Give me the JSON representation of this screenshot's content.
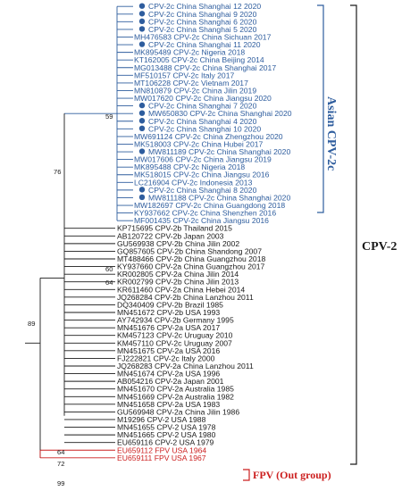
{
  "tree": {
    "asian_clade": [
      {
        "label": "CPV-2c China Shanghai 12 2020",
        "dot": true
      },
      {
        "label": "CPV-2c China Shanghai 9 2020",
        "dot": true
      },
      {
        "label": "CPV-2c China Shanghai 6 2020",
        "dot": true
      },
      {
        "label": "CPV-2c China Shanghai 5 2020",
        "dot": true
      },
      {
        "label": "MH476583 CPV-2c China Sichuan 2017",
        "dot": false
      },
      {
        "label": "CPV-2c China Shanghai 11 2020",
        "dot": true
      },
      {
        "label": "MK895489 CPV-2c Nigeria 2018",
        "dot": false
      },
      {
        "label": "KT162005 CPV-2c China Beijing 2014",
        "dot": false
      },
      {
        "label": "MG013488 CPV-2c China Shanghai 2017",
        "dot": false
      },
      {
        "label": "MF510157 CPV-2c Italy 2017",
        "dot": false
      },
      {
        "label": "MT106228 CPV-2c Vietnam 2017",
        "dot": false
      },
      {
        "label": "MN810879 CPV-2c China Jilin 2019",
        "dot": false
      },
      {
        "label": "MW017620 CPV-2c China Jiangsu 2020",
        "dot": false
      },
      {
        "label": "CPV-2c China Shanghai 7 2020",
        "dot": true
      },
      {
        "label": "MW650830 CPV-2c China Shanghai 2020",
        "dot": true
      },
      {
        "label": "CPV-2c China Shanghai 4 2020",
        "dot": true
      },
      {
        "label": "CPV-2c China Shanghai 10 2020",
        "dot": true
      },
      {
        "label": "MW691124 CPV-2c China Zhengzhou 2020",
        "dot": false
      },
      {
        "label": "MK518003 CPV-2c China Hubei 2017",
        "dot": false
      },
      {
        "label": "MW811189 CPV-2c China Shanghai 2020",
        "dot": true
      },
      {
        "label": "MW017606 CPV-2c China Jiangsu 2019",
        "dot": false
      },
      {
        "label": "MK895488 CPV-2c Nigeria 2018",
        "dot": false
      },
      {
        "label": "MK518015 CPV-2c China Jiangsu 2016",
        "dot": false
      },
      {
        "label": "LC216904 CPV-2c Indonesia 2013",
        "dot": false
      },
      {
        "label": "CPV-2c China Shanghai 8 2020",
        "dot": true
      },
      {
        "label": "MW811188 CPV-2c China Shanghai 2020",
        "dot": true
      },
      {
        "label": "MW182697 CPV-2c China Guangdong 2018",
        "dot": false
      },
      {
        "label": "KY937662 CPV-2c China Shenzhen 2016",
        "dot": false
      },
      {
        "label": "MF001435 CPV-2c China Jiangsu 2016",
        "dot": false
      }
    ],
    "other_clade": [
      {
        "label": "KP715695 CPV-2b Thailand 2015"
      },
      {
        "label": "AB120722 CPV-2b Japan 2003"
      },
      {
        "label": "GU569938 CPV-2b China Jilin 2002"
      },
      {
        "label": "GQ857605 CPV-2b China Shandong 2007"
      },
      {
        "label": "MT488466 CPV-2b China Guangzhou 2018"
      },
      {
        "label": "KY937660 CPV-2a China Guangzhou 2017"
      },
      {
        "label": "KR002805 CPV-2a China Jilin 2014"
      },
      {
        "label": "KR002799 CPV-2b China Jilin 2013"
      },
      {
        "label": "KR611460 CPV-2a China Hebei 2014"
      },
      {
        "label": "JQ268284 CPV-2b China Lanzhou 2011"
      },
      {
        "label": "DQ340409 CPV-2b Brazil 1985"
      },
      {
        "label": "MN451672 CPV-2b USA 1993"
      },
      {
        "label": "AY742934 CPV-2b Germany 1995"
      },
      {
        "label": "MN451676 CPV-2a USA 2017"
      },
      {
        "label": "KM457123 CPV-2c Uruguay 2010"
      },
      {
        "label": "KM457110 CPV-2c Uruguay 2007"
      },
      {
        "label": "MN451675 CPV-2a USA 2016"
      },
      {
        "label": "FJ222821 CPV-2c Italy 2000"
      },
      {
        "label": "JQ268283 CPV-2a China Lanzhou 2011"
      },
      {
        "label": "MN451674 CPV-2a USA 1996"
      },
      {
        "label": "AB054216 CPV-2a Japan 2001"
      },
      {
        "label": "MN451670 CPV-2a Australia 1985"
      },
      {
        "label": "MN451669 CPV-2a Australia 1982"
      },
      {
        "label": "MN451658 CPV-2a USA 1983"
      },
      {
        "label": "GU569948 CPV-2a China Jilin 1986"
      },
      {
        "label": "M19296 CPV-2 USA 1988"
      },
      {
        "label": "MN451655 CPV-2 USA 1978"
      },
      {
        "label": "MN451665 CPV-2 USA 1980"
      },
      {
        "label": "EU659116 CPV-2 USA 1979"
      }
    ],
    "outgroup": [
      {
        "label": "EU659112 FPV USA 1964"
      },
      {
        "label": "EU659111 FPV USA 1967"
      }
    ],
    "bootstrap": {
      "asian": "59",
      "cpv2c_group": "76",
      "shandong": "60",
      "guangzhou": "64",
      "ingroup": "89",
      "cpv2_base": "64",
      "cpv2_pair": "72",
      "root": "99"
    },
    "group_labels": {
      "asian": "Asian CPV-2c",
      "cpv2": "CPV-2",
      "fpv": "FPV (Out group)"
    },
    "colors": {
      "asian": "#2e5d9e",
      "outgroup": "#cc1f1f",
      "default": "#1a1a1a"
    }
  }
}
